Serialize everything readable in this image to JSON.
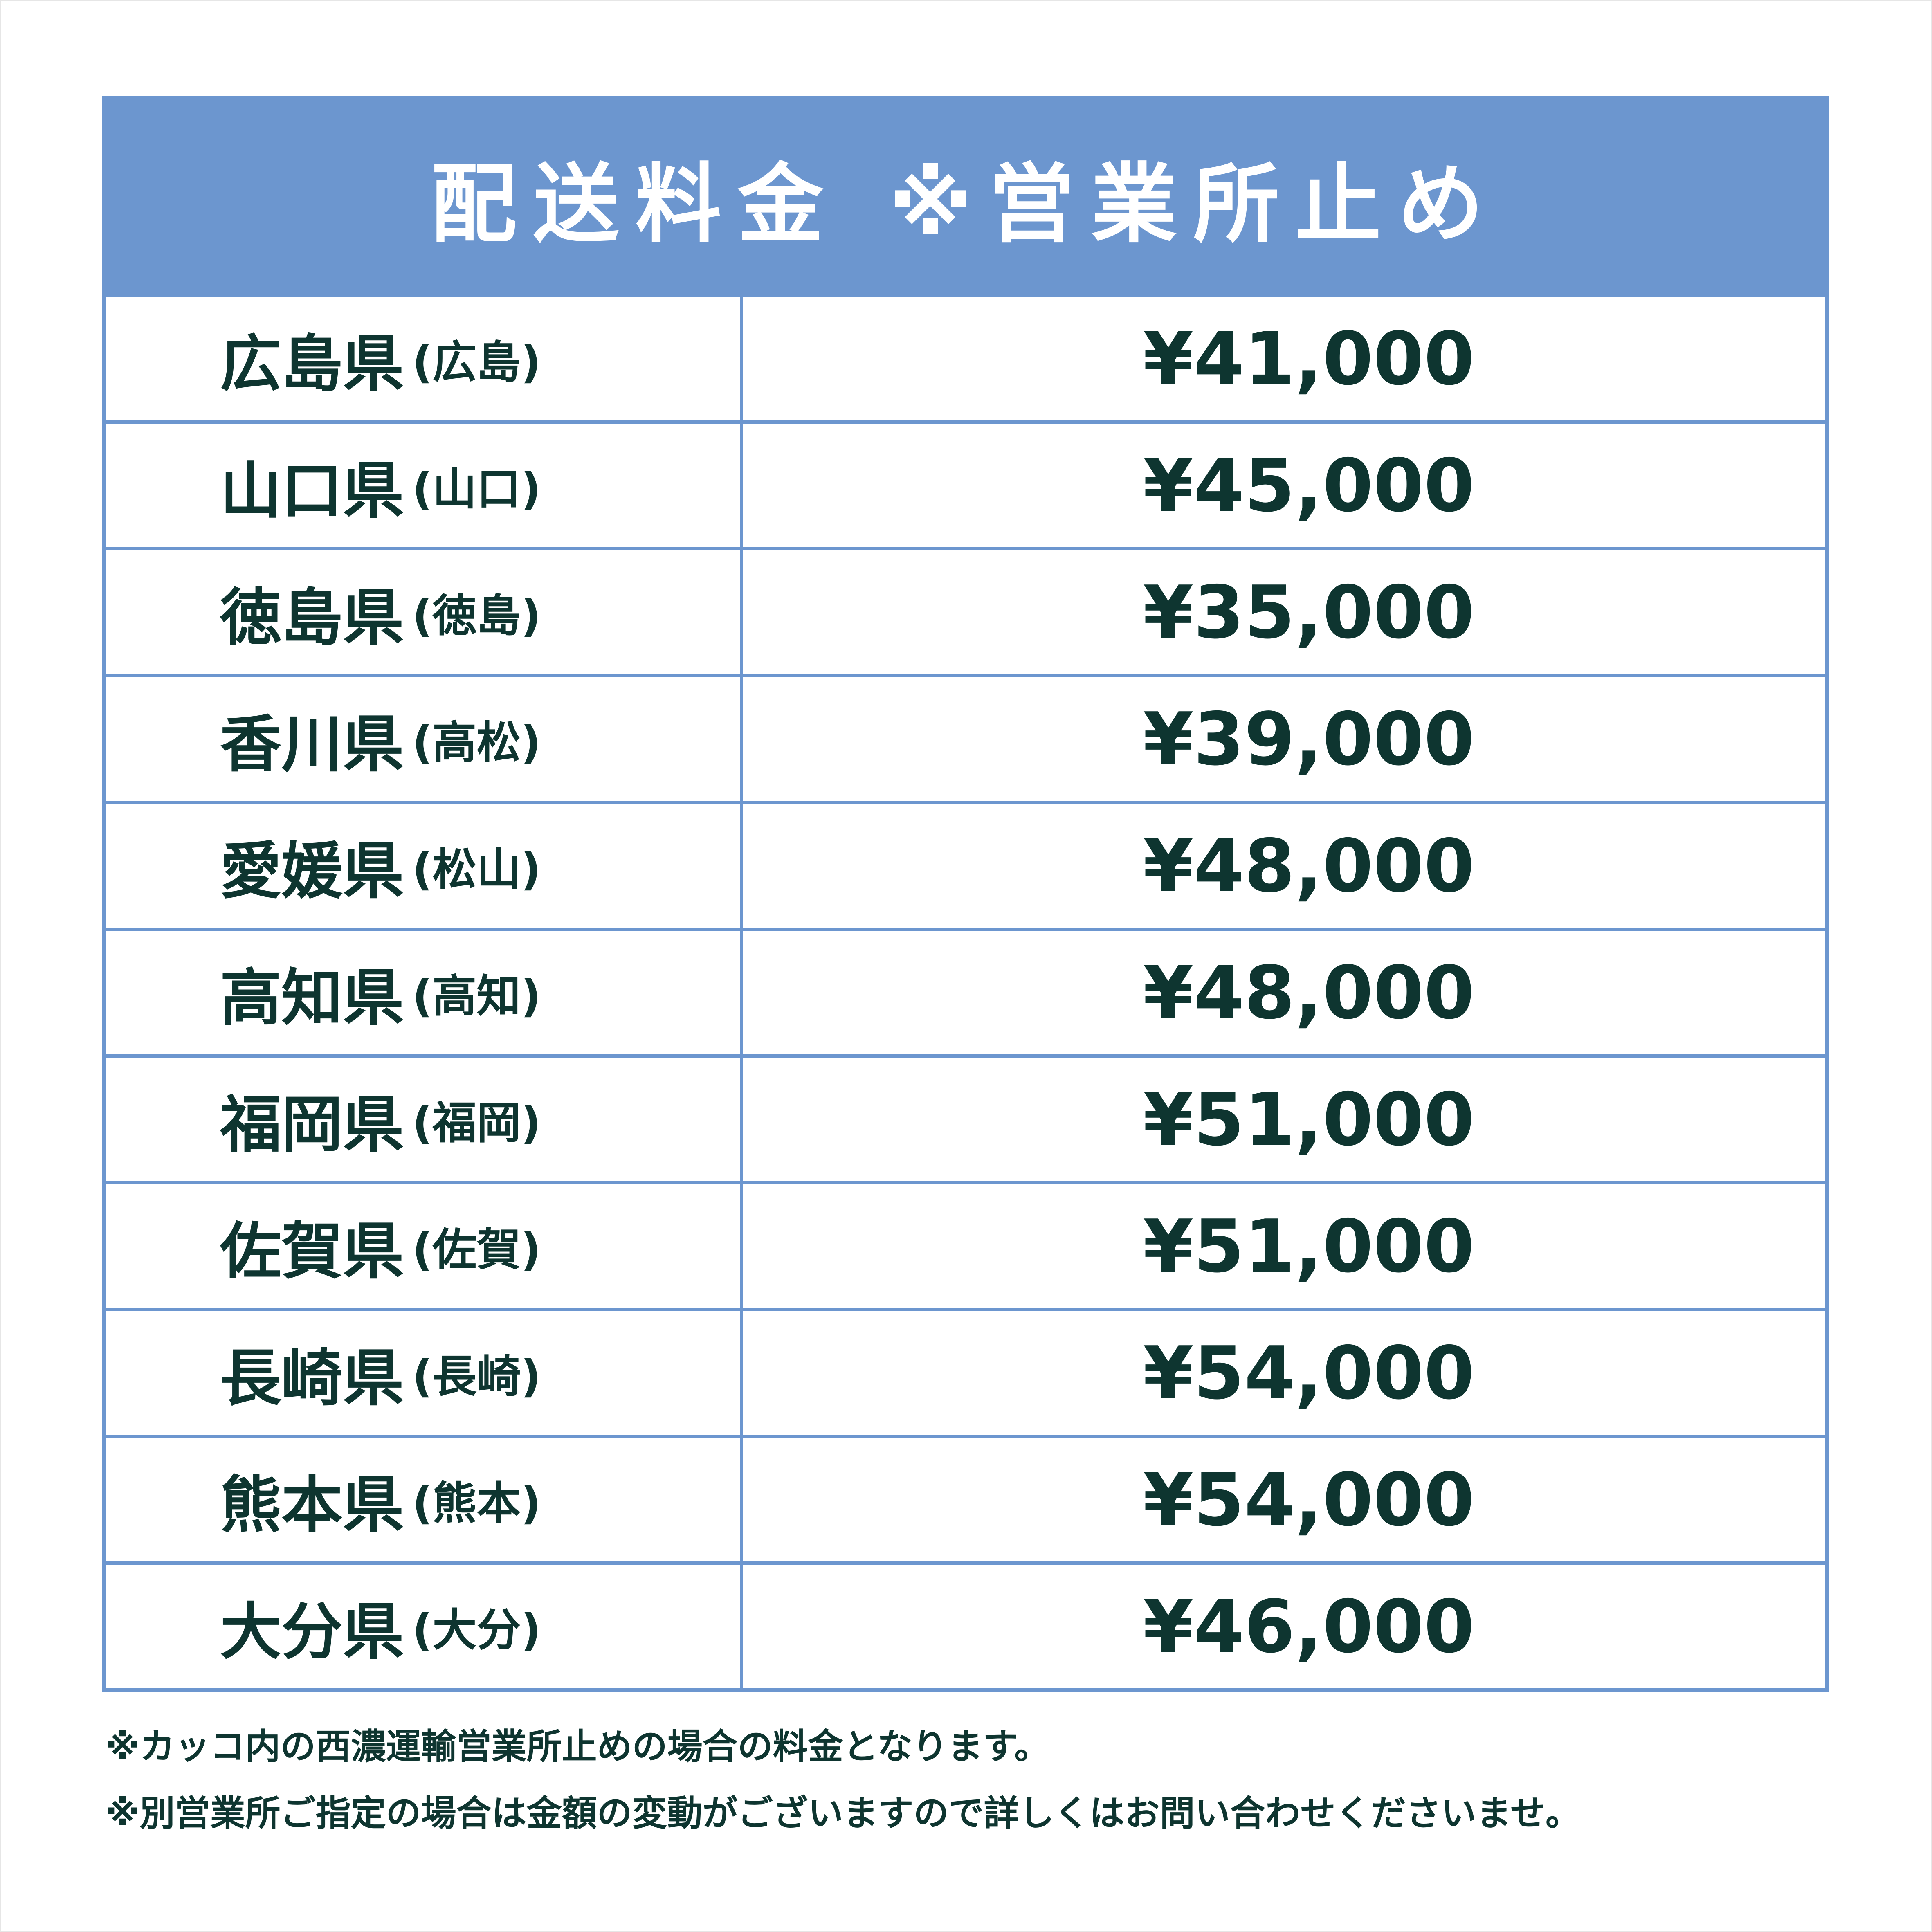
{
  "colors": {
    "header_bg": "#6c96cf",
    "text": "#0e3530",
    "border": "#6c96cf"
  },
  "header": {
    "title": "配送料金",
    "subtitle": "※営業所止め"
  },
  "rows": [
    {
      "prefecture": "広島県",
      "office": "(広島)",
      "price": "¥41,000"
    },
    {
      "prefecture": "山口県",
      "office": "(山口)",
      "price": "¥45,000"
    },
    {
      "prefecture": "徳島県",
      "office": "(徳島)",
      "price": "¥35,000"
    },
    {
      "prefecture": "香川県",
      "office": "(高松)",
      "price": "¥39,000"
    },
    {
      "prefecture": "愛媛県",
      "office": "(松山)",
      "price": "¥48,000"
    },
    {
      "prefecture": "高知県",
      "office": "(高知)",
      "price": "¥48,000"
    },
    {
      "prefecture": "福岡県",
      "office": "(福岡)",
      "price": "¥51,000"
    },
    {
      "prefecture": "佐賀県",
      "office": "(佐賀)",
      "price": "¥51,000"
    },
    {
      "prefecture": "長崎県",
      "office": "(長崎)",
      "price": "¥54,000"
    },
    {
      "prefecture": "熊本県",
      "office": "(熊本)",
      "price": "¥54,000"
    },
    {
      "prefecture": "大分県",
      "office": "(大分)",
      "price": "¥46,000"
    }
  ],
  "notes": [
    "※カッコ内の西濃運輸営業所止めの場合の料金となります。",
    "※別営業所ご指定の場合は金額の変動がございますので詳しくはお問い合わせくださいませ。"
  ]
}
